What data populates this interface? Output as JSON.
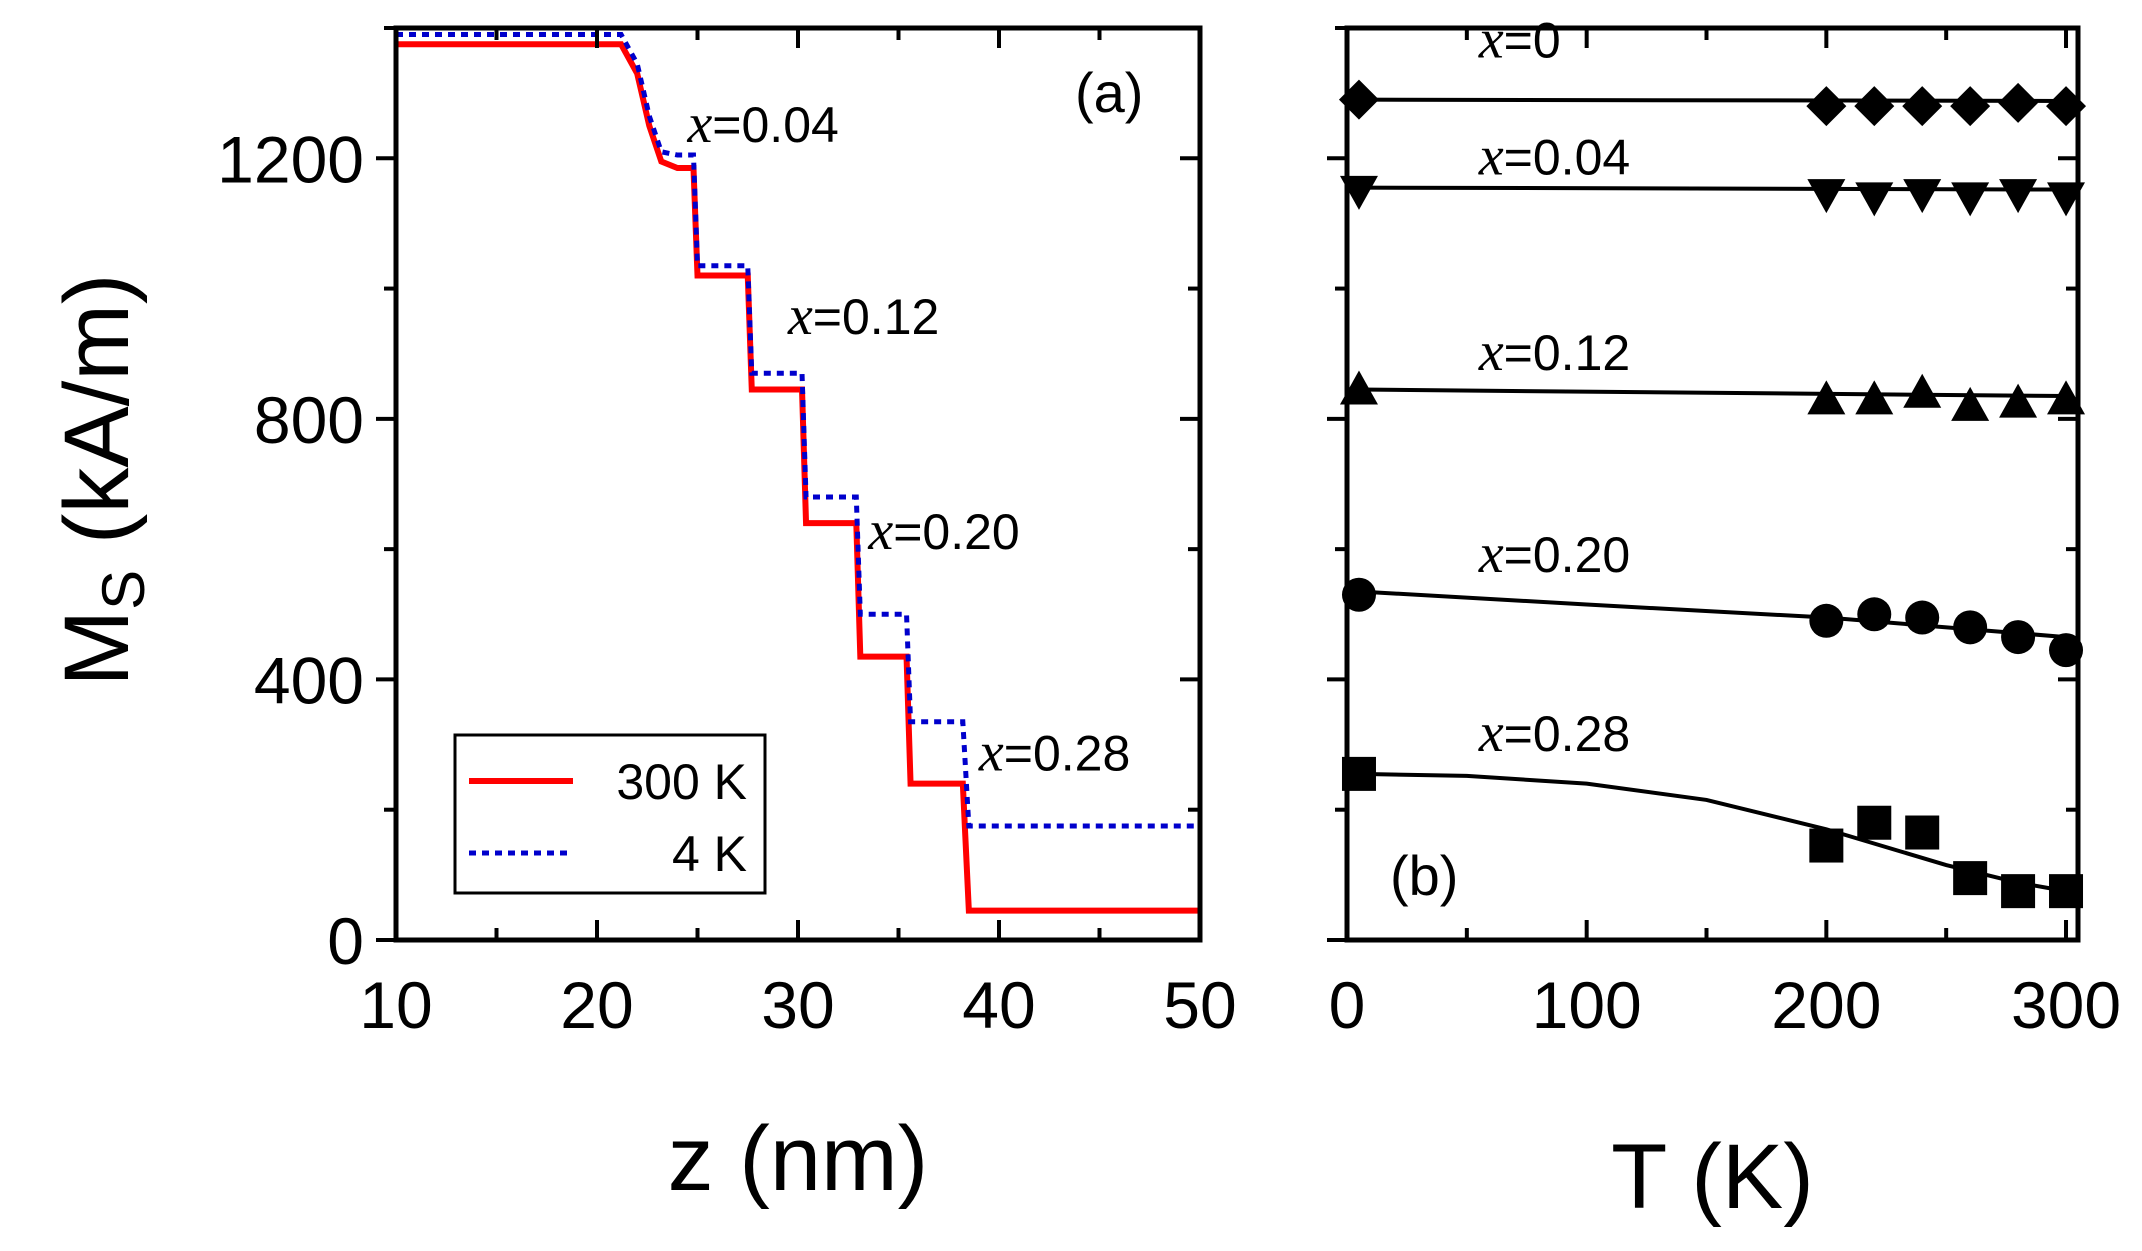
{
  "chart_data": [
    {
      "type": "line",
      "panel": "(a)",
      "xlabel": "z (nm)",
      "ylabel_main": "M",
      "ylabel_sub": "S",
      "ylabel_units": " (kA/m)",
      "xlim": [
        10,
        50
      ],
      "ylim": [
        0,
        1400
      ],
      "xticks": [
        10,
        20,
        30,
        40,
        50
      ],
      "yticks": [
        0,
        400,
        800,
        1200
      ],
      "series": [
        {
          "name": "300 K",
          "color": "#ff0000",
          "style": "solid",
          "x": [
            10,
            21.2,
            22.0,
            22.6,
            23.2,
            24.0,
            24.8,
            25.0,
            25.2,
            27.5,
            27.7,
            30.2,
            30.4,
            32.9,
            33.1,
            35.4,
            35.6,
            38.2,
            38.5,
            50
          ],
          "y": [
            1375,
            1375,
            1330,
            1250,
            1195,
            1185,
            1185,
            1020,
            1020,
            1020,
            845,
            845,
            640,
            640,
            435,
            435,
            240,
            240,
            45,
            45
          ]
        },
        {
          "name": "4 K",
          "color": "#0000cc",
          "style": "dotted",
          "x": [
            10,
            21.2,
            22.0,
            22.6,
            23.2,
            24.0,
            24.8,
            25.0,
            25.2,
            27.5,
            27.7,
            30.2,
            30.4,
            32.9,
            33.1,
            35.4,
            35.6,
            38.2,
            38.5,
            50
          ],
          "y": [
            1390,
            1390,
            1345,
            1265,
            1210,
            1205,
            1205,
            1035,
            1035,
            1035,
            870,
            870,
            680,
            680,
            500,
            500,
            335,
            335,
            175,
            175
          ]
        }
      ],
      "annotations": [
        {
          "prefix": "x",
          "text": "=0.04",
          "x": 24.5,
          "y": 1225
        },
        {
          "prefix": "x",
          "text": "=0.12",
          "x": 29.5,
          "y": 930
        },
        {
          "prefix": "x",
          "text": "=0.20",
          "x": 33.5,
          "y": 600
        },
        {
          "prefix": "x",
          "text": "=0.28",
          "x": 39.0,
          "y": 260
        }
      ],
      "legend": {
        "position": "bottom-left",
        "entries": [
          {
            "label": "300 K",
            "series": 0
          },
          {
            "label": "4 K",
            "series": 1
          }
        ]
      }
    },
    {
      "type": "scatter",
      "panel": "(b)",
      "xlabel": "T (K)",
      "xlim": [
        0,
        305
      ],
      "ylim": [
        0,
        1400
      ],
      "xticks": [
        0,
        100,
        200,
        300
      ],
      "series": [
        {
          "name": "x=0",
          "marker": "diamond",
          "x": [
            5,
            200,
            220,
            240,
            260,
            280,
            300
          ],
          "y": [
            1290,
            1280,
            1280,
            1280,
            1280,
            1285,
            1280
          ],
          "fit": [
            [
              5,
              1290
            ],
            [
              300,
              1288
            ]
          ]
        },
        {
          "name": "x=0.04",
          "marker": "triangle-down",
          "x": [
            5,
            200,
            220,
            240,
            260,
            280,
            300
          ],
          "y": [
            1150,
            1145,
            1140,
            1145,
            1140,
            1145,
            1140
          ],
          "fit": [
            [
              5,
              1155
            ],
            [
              300,
              1152
            ]
          ]
        },
        {
          "name": "x=0.12",
          "marker": "triangle-up",
          "x": [
            5,
            200,
            220,
            240,
            260,
            280,
            300
          ],
          "y": [
            845,
            830,
            830,
            840,
            820,
            825,
            830
          ],
          "fit": [
            [
              5,
              845
            ],
            [
              300,
              835
            ]
          ]
        },
        {
          "name": "x=0.20",
          "marker": "circle",
          "x": [
            5,
            200,
            220,
            240,
            260,
            280,
            300
          ],
          "y": [
            530,
            490,
            500,
            495,
            480,
            465,
            445
          ],
          "fit": [
            [
              5,
              535
            ],
            [
              100,
              515
            ],
            [
              200,
              495
            ],
            [
              300,
              465
            ]
          ]
        },
        {
          "name": "x=0.28",
          "marker": "square",
          "x": [
            5,
            200,
            220,
            240,
            260,
            280,
            300
          ],
          "y": [
            255,
            145,
            180,
            165,
            95,
            75,
            75
          ],
          "fit": [
            [
              5,
              255
            ],
            [
              50,
              252
            ],
            [
              100,
              240
            ],
            [
              150,
              215
            ],
            [
              200,
              170
            ],
            [
              250,
              115
            ],
            [
              280,
              88
            ],
            [
              300,
              75
            ]
          ]
        }
      ],
      "annotations": [
        {
          "prefix": "x",
          "text": "=0",
          "x": 55,
          "y": 1355
        },
        {
          "prefix": "x",
          "text": "=0.04",
          "x": 55,
          "y": 1175
        },
        {
          "prefix": "x",
          "text": "=0.12",
          "x": 55,
          "y": 875
        },
        {
          "prefix": "x",
          "text": "=0.20",
          "x": 55,
          "y": 565
        },
        {
          "prefix": "x",
          "text": "=0.28",
          "x": 55,
          "y": 290
        }
      ]
    }
  ]
}
